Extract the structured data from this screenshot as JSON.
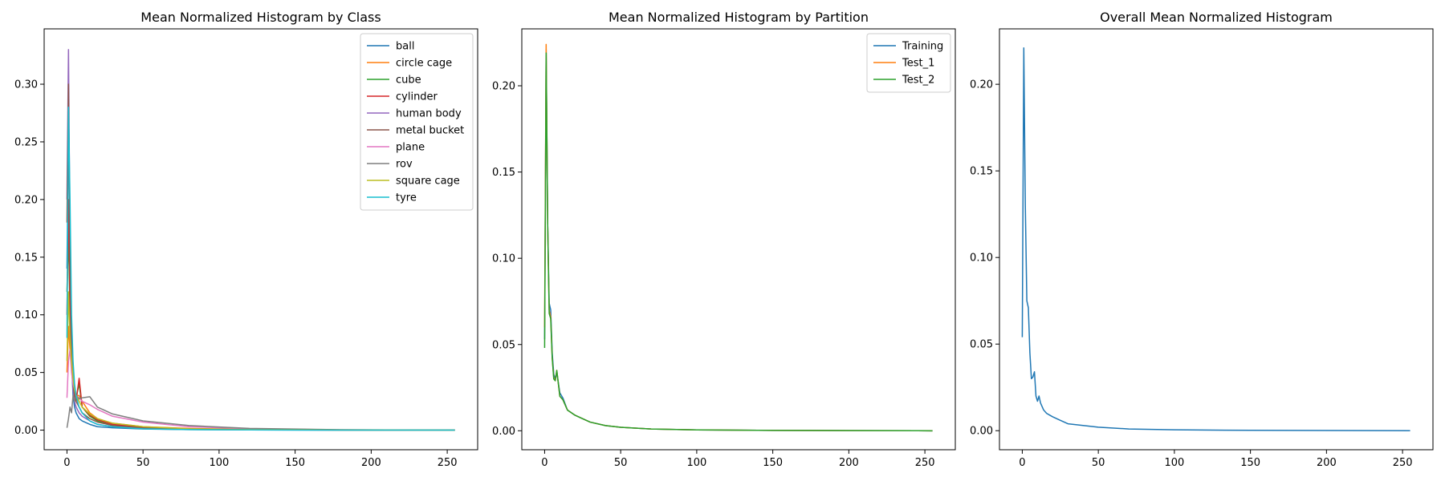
{
  "chart_data": [
    {
      "type": "line",
      "title": "Mean Normalized Histogram by Class",
      "xlabel": "",
      "ylabel": "",
      "xlim": [
        -15,
        270
      ],
      "ylim": [
        -0.017,
        0.348
      ],
      "xticks": [
        0,
        50,
        100,
        150,
        200,
        250
      ],
      "yticks": [
        0.0,
        0.05,
        0.1,
        0.15,
        0.2,
        0.25,
        0.3
      ],
      "ytick_labels": [
        "0.00",
        "0.05",
        "0.10",
        "0.15",
        "0.20",
        "0.25",
        "0.30"
      ],
      "legend_position": "top-right",
      "series": [
        {
          "name": "ball",
          "color": "#1f77b4",
          "x": [
            0,
            1,
            2,
            3,
            4,
            5,
            6,
            8,
            10,
            15,
            20,
            30,
            50,
            80,
            120,
            180,
            255
          ],
          "y": [
            0.14,
            0.26,
            0.17,
            0.06,
            0.03,
            0.02,
            0.015,
            0.01,
            0.008,
            0.005,
            0.003,
            0.002,
            0.001,
            0.0005,
            0.0002,
            0.0001,
            0.0
          ]
        },
        {
          "name": "circle cage",
          "color": "#ff7f0e",
          "x": [
            0,
            1,
            2,
            3,
            4,
            5,
            6,
            8,
            10,
            15,
            20,
            30,
            50,
            80,
            120,
            180,
            255
          ],
          "y": [
            0.05,
            0.09,
            0.07,
            0.075,
            0.05,
            0.035,
            0.03,
            0.03,
            0.025,
            0.015,
            0.01,
            0.006,
            0.003,
            0.0015,
            0.0006,
            0.0002,
            0.0
          ]
        },
        {
          "name": "cube",
          "color": "#2ca02c",
          "x": [
            0,
            1,
            2,
            3,
            4,
            5,
            6,
            8,
            10,
            15,
            20,
            30,
            50,
            80,
            120,
            180,
            255
          ],
          "y": [
            0.12,
            0.17,
            0.1,
            0.06,
            0.04,
            0.03,
            0.028,
            0.04,
            0.02,
            0.012,
            0.008,
            0.004,
            0.002,
            0.001,
            0.0004,
            0.0001,
            0.0
          ]
        },
        {
          "name": "cylinder",
          "color": "#d62728",
          "x": [
            0,
            1,
            2,
            3,
            4,
            5,
            6,
            8,
            10,
            15,
            20,
            30,
            50,
            80,
            120,
            180,
            255
          ],
          "y": [
            0.1,
            0.2,
            0.11,
            0.06,
            0.04,
            0.03,
            0.025,
            0.045,
            0.02,
            0.013,
            0.009,
            0.005,
            0.0025,
            0.001,
            0.0004,
            0.0001,
            0.0
          ]
        },
        {
          "name": "human body",
          "color": "#9467bd",
          "x": [
            0,
            1,
            2,
            3,
            4,
            5,
            6,
            8,
            10,
            15,
            20,
            30,
            50,
            80,
            120,
            180,
            255
          ],
          "y": [
            0.2,
            0.33,
            0.16,
            0.06,
            0.035,
            0.025,
            0.02,
            0.015,
            0.012,
            0.008,
            0.005,
            0.003,
            0.0015,
            0.0007,
            0.0003,
            0.0001,
            0.0
          ]
        },
        {
          "name": "metal bucket",
          "color": "#8c564b",
          "x": [
            0,
            1,
            2,
            3,
            4,
            5,
            6,
            8,
            10,
            15,
            20,
            30,
            50,
            80,
            120,
            180,
            255
          ],
          "y": [
            0.18,
            0.3,
            0.15,
            0.07,
            0.04,
            0.03,
            0.025,
            0.02,
            0.015,
            0.01,
            0.007,
            0.004,
            0.002,
            0.001,
            0.0004,
            0.0001,
            0.0
          ]
        },
        {
          "name": "plane",
          "color": "#e377c2",
          "x": [
            0,
            1,
            2,
            3,
            4,
            5,
            6,
            8,
            10,
            15,
            20,
            30,
            50,
            80,
            120,
            180,
            255
          ],
          "y": [
            0.028,
            0.06,
            0.07,
            0.05,
            0.04,
            0.035,
            0.03,
            0.028,
            0.025,
            0.022,
            0.018,
            0.012,
            0.007,
            0.003,
            0.0012,
            0.0003,
            0.0
          ]
        },
        {
          "name": "rov",
          "color": "#7f7f7f",
          "x": [
            0,
            1,
            2,
            3,
            4,
            5,
            6,
            8,
            10,
            15,
            20,
            30,
            50,
            80,
            120,
            180,
            255
          ],
          "y": [
            0.002,
            0.01,
            0.02,
            0.015,
            0.03,
            0.025,
            0.03,
            0.027,
            0.028,
            0.029,
            0.02,
            0.014,
            0.008,
            0.004,
            0.0015,
            0.0004,
            0.0
          ]
        },
        {
          "name": "square cage",
          "color": "#bcbd22",
          "x": [
            0,
            1,
            2,
            3,
            4,
            5,
            6,
            8,
            10,
            15,
            20,
            30,
            50,
            80,
            120,
            180,
            255
          ],
          "y": [
            0.06,
            0.12,
            0.08,
            0.06,
            0.045,
            0.035,
            0.03,
            0.025,
            0.02,
            0.014,
            0.01,
            0.006,
            0.003,
            0.0012,
            0.0005,
            0.0001,
            0.0
          ]
        },
        {
          "name": "tyre",
          "color": "#17becf",
          "x": [
            0,
            1,
            2,
            3,
            4,
            5,
            6,
            8,
            10,
            15,
            20,
            30,
            50,
            80,
            120,
            180,
            255
          ],
          "y": [
            0.08,
            0.28,
            0.2,
            0.1,
            0.06,
            0.04,
            0.03,
            0.02,
            0.015,
            0.008,
            0.005,
            0.003,
            0.0012,
            0.0005,
            0.0002,
            0.0,
            0.0
          ]
        }
      ]
    },
    {
      "type": "line",
      "title": "Mean Normalized Histogram by Partition",
      "xlabel": "",
      "ylabel": "",
      "xlim": [
        -15,
        270
      ],
      "ylim": [
        -0.011,
        0.233
      ],
      "xticks": [
        0,
        50,
        100,
        150,
        200,
        250
      ],
      "yticks": [
        0.0,
        0.05,
        0.1,
        0.15,
        0.2
      ],
      "ytick_labels": [
        "0.00",
        "0.05",
        "0.10",
        "0.15",
        "0.20"
      ],
      "legend_position": "top-right",
      "series": [
        {
          "name": "Training",
          "color": "#1f77b4",
          "x": [
            0,
            1,
            2,
            3,
            4,
            5,
            6,
            7,
            8,
            10,
            12,
            15,
            20,
            25,
            30,
            40,
            50,
            70,
            100,
            150,
            200,
            255
          ],
          "y": [
            0.053,
            0.221,
            0.12,
            0.074,
            0.07,
            0.045,
            0.033,
            0.03,
            0.034,
            0.022,
            0.019,
            0.012,
            0.009,
            0.007,
            0.005,
            0.003,
            0.002,
            0.001,
            0.0005,
            0.0002,
            0.0001,
            0.0
          ]
        },
        {
          "name": "Test_1",
          "color": "#ff7f0e",
          "x": [
            0,
            1,
            2,
            3,
            4,
            5,
            6,
            7,
            8,
            10,
            12,
            15,
            20,
            25,
            30,
            40,
            50,
            70,
            100,
            150,
            200,
            255
          ],
          "y": [
            0.06,
            0.224,
            0.12,
            0.07,
            0.066,
            0.042,
            0.031,
            0.029,
            0.035,
            0.02,
            0.018,
            0.012,
            0.009,
            0.007,
            0.005,
            0.003,
            0.002,
            0.001,
            0.0005,
            0.0002,
            0.0001,
            0.0
          ]
        },
        {
          "name": "Test_2",
          "color": "#2ca02c",
          "x": [
            0,
            1,
            2,
            3,
            4,
            5,
            6,
            7,
            8,
            10,
            12,
            15,
            20,
            25,
            30,
            40,
            50,
            70,
            100,
            150,
            200,
            255
          ],
          "y": [
            0.048,
            0.219,
            0.12,
            0.068,
            0.065,
            0.042,
            0.03,
            0.029,
            0.035,
            0.02,
            0.018,
            0.012,
            0.009,
            0.007,
            0.005,
            0.003,
            0.002,
            0.001,
            0.0005,
            0.0002,
            0.0001,
            0.0
          ]
        }
      ]
    },
    {
      "type": "line",
      "title": "Overall Mean Normalized Histogram",
      "xlabel": "",
      "ylabel": "",
      "xlim": [
        -15,
        270
      ],
      "ylim": [
        -0.011,
        0.232
      ],
      "xticks": [
        0,
        50,
        100,
        150,
        200,
        250
      ],
      "yticks": [
        0.0,
        0.05,
        0.1,
        0.15,
        0.2
      ],
      "ytick_labels": [
        "0.00",
        "0.05",
        "0.10",
        "0.15",
        "0.20"
      ],
      "series": [
        {
          "color": "#1f77b4",
          "x": [
            0,
            1,
            2,
            3,
            4,
            5,
            6,
            7,
            8,
            9,
            10,
            11,
            12,
            14,
            16,
            18,
            20,
            25,
            30,
            40,
            50,
            70,
            100,
            150,
            200,
            255
          ],
          "y": [
            0.054,
            0.221,
            0.13,
            0.075,
            0.071,
            0.045,
            0.03,
            0.031,
            0.034,
            0.02,
            0.017,
            0.02,
            0.016,
            0.012,
            0.01,
            0.009,
            0.008,
            0.006,
            0.004,
            0.003,
            0.002,
            0.001,
            0.0005,
            0.0002,
            0.0001,
            0.0
          ]
        }
      ]
    }
  ]
}
